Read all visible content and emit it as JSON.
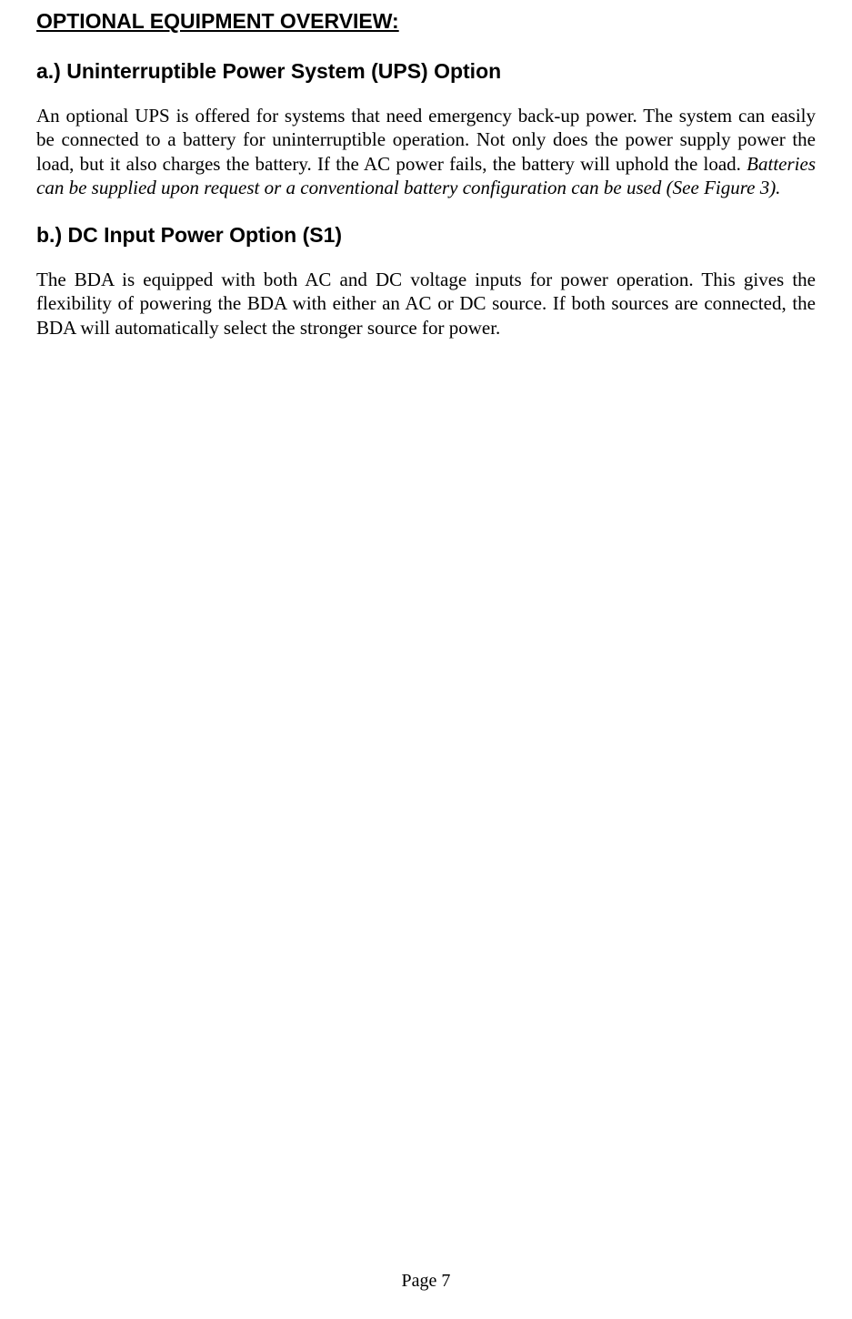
{
  "section": {
    "title": "OPTIONAL EQUIPMENT OVERVIEW:",
    "subsections": [
      {
        "heading": "a.) Uninterruptible Power System (UPS) Option",
        "body_plain": "An optional UPS is offered for systems that need emergency back-up power. The system can easily be connected to a battery for uninterruptible operation. Not only does the power supply power the load, but it also charges the battery. If the AC power fails, the battery will uphold the load. ",
        "body_italic": "Batteries can be supplied upon request or a conventional battery configuration can be used (See Figure 3)."
      },
      {
        "heading": "b.) DC Input Power Option (S1)",
        "body_plain": "The BDA is equipped with both AC and DC voltage inputs for power operation. This gives the flexibility of powering the BDA with either an AC or DC source. If both sources are connected, the BDA will automatically select the stronger source for power.",
        "body_italic": ""
      }
    ]
  },
  "footer": {
    "page_label": "Page 7"
  }
}
